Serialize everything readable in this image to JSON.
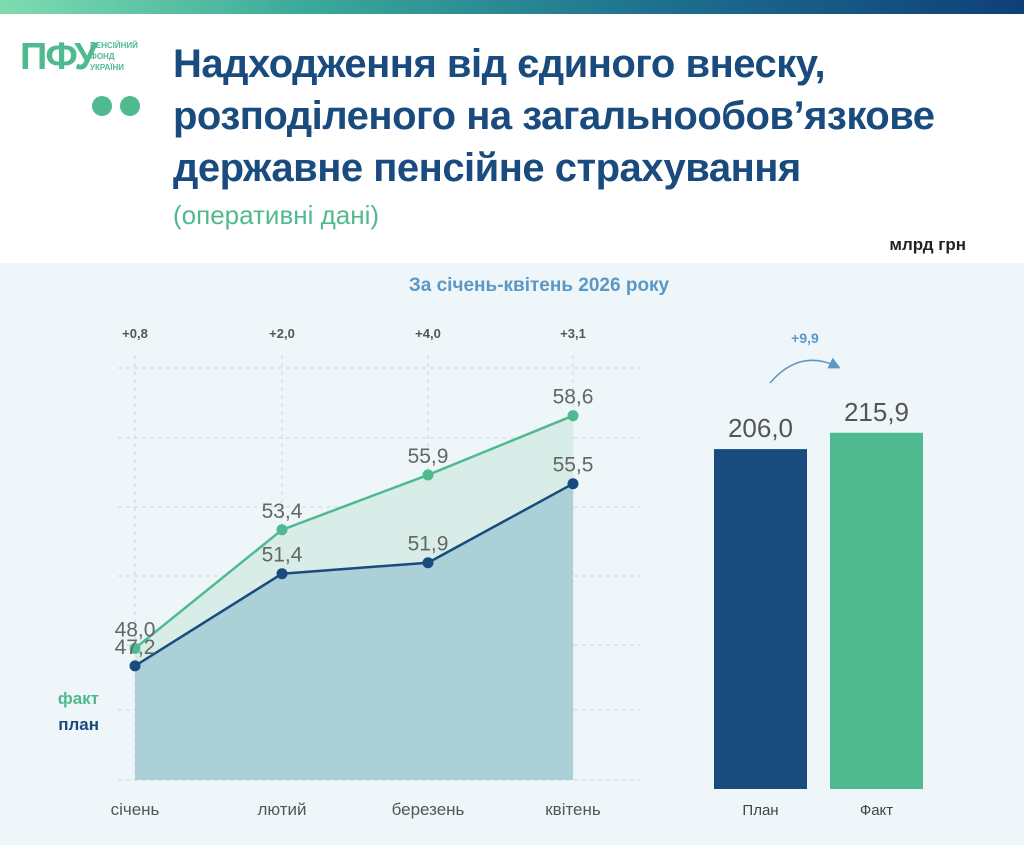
{
  "header": {
    "logo_text": "ПФУ",
    "logo_caption": [
      "ПЕНСІЙНИЙ",
      "ФОНД",
      "УКРАЇНИ"
    ],
    "title_lines": [
      "Надходження від єдиного внеску,",
      "розподіленого на загальнообов’язкове",
      "державне пенсійне страхування"
    ],
    "subtitle": "(оперативні дані)",
    "unit": "млрд грн"
  },
  "colors": {
    "plan": "#1a4b7e",
    "fact": "#4fba8f",
    "accent": "#5b98c6"
  },
  "chart_data": [
    {
      "type": "line",
      "title": "За січень-квітень 2026 року",
      "categories": [
        "січень",
        "лютий",
        "березень",
        "квітень"
      ],
      "series": [
        {
          "name": "факт",
          "values": [
            48.0,
            53.4,
            55.9,
            58.6
          ],
          "labels": [
            "48,0",
            "53,4",
            "55,9",
            "58,6"
          ]
        },
        {
          "name": "план",
          "values": [
            47.2,
            51.4,
            51.9,
            55.5
          ],
          "labels": [
            "47,2",
            "51,4",
            "51,9",
            "55,5"
          ]
        }
      ],
      "differences": [
        "+0,8",
        "+2,0",
        "+4,0",
        "+3,1"
      ],
      "ylim": [
        42,
        61
      ],
      "grid": true
    },
    {
      "type": "bar",
      "categories": [
        "План",
        "Факт"
      ],
      "values": [
        206.0,
        215.9
      ],
      "labels": [
        "206,0",
        "215,9"
      ],
      "difference": "+9,9"
    }
  ]
}
